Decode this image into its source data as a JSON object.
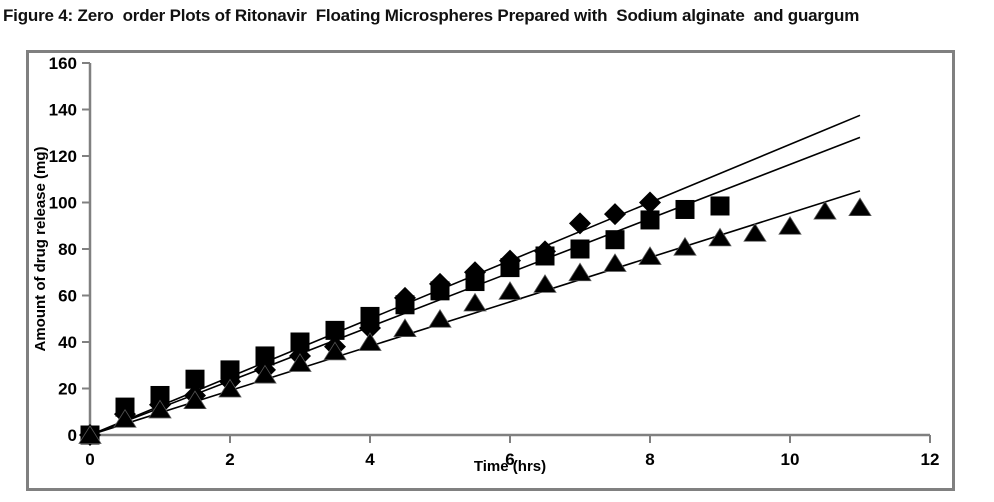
{
  "figure": {
    "title": "Figure 4: Zero  order Plots of Ritonavir  Floating Microspheres Prepared with  Sodium alginate  and guargum"
  },
  "chart_data": {
    "type": "scatter",
    "title": "",
    "xlabel": "Time (hrs)",
    "ylabel": "Amount of drug release (mg)",
    "xlim": [
      0,
      12
    ],
    "ylim": [
      0,
      160
    ],
    "x_ticks": [
      0,
      2,
      4,
      6,
      8,
      10,
      12
    ],
    "y_ticks": [
      0,
      20,
      40,
      60,
      80,
      100,
      120,
      140,
      160
    ],
    "grid": false,
    "legend": "none",
    "axis_color": "#808080",
    "frame_color": "#808080",
    "marker_color": "#000000",
    "text_color": "#000000",
    "series": [
      {
        "name": "formulation-diamond",
        "marker": "diamond",
        "x": [
          0,
          0.5,
          1,
          1.5,
          2,
          2.5,
          3,
          3.5,
          4,
          4.5,
          5,
          5.5,
          6,
          6.5,
          7,
          7.5,
          8
        ],
        "y": [
          0,
          9,
          13,
          17,
          23,
          28,
          34,
          38,
          46,
          59,
          65,
          70,
          75,
          79,
          91,
          95,
          100
        ]
      },
      {
        "name": "formulation-square",
        "marker": "square",
        "x": [
          0,
          0.5,
          1,
          1.5,
          2,
          2.5,
          3,
          3.5,
          4,
          4.5,
          5,
          5.5,
          6,
          6.5,
          7,
          7.5,
          8,
          8.5,
          9
        ],
        "y": [
          0,
          12,
          17,
          24,
          28,
          34,
          40,
          45,
          51,
          56,
          62,
          66,
          72,
          77,
          80,
          84,
          92.5,
          97,
          98.5
        ]
      },
      {
        "name": "formulation-triangle",
        "marker": "triangle",
        "x": [
          0,
          0.5,
          1,
          1.5,
          2,
          2.5,
          3,
          3.5,
          4,
          4.5,
          5,
          5.5,
          6,
          6.5,
          7,
          7.5,
          8,
          8.5,
          9,
          9.5,
          10,
          10.5,
          11
        ],
        "y": [
          0,
          7,
          11,
          15,
          20,
          26,
          31,
          36,
          40,
          46,
          50,
          57,
          62,
          65,
          70,
          74,
          77,
          81,
          85,
          87,
          90,
          96.5,
          98
        ]
      }
    ],
    "trend_lines": [
      {
        "name": "zero-order-fit-diamond",
        "x": [
          0,
          11
        ],
        "y": [
          0,
          137.5
        ]
      },
      {
        "name": "zero-order-fit-square",
        "x": [
          0,
          11
        ],
        "y": [
          0,
          128
        ]
      },
      {
        "name": "zero-order-fit-triangle",
        "x": [
          0,
          11
        ],
        "y": [
          0,
          105
        ]
      }
    ]
  }
}
